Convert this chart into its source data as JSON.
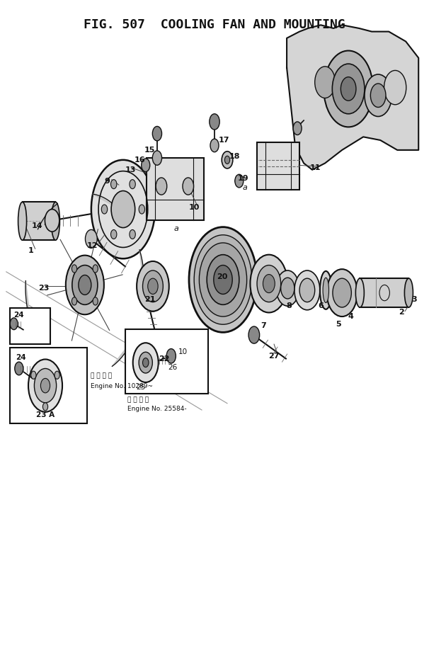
{
  "title": "FIG. 507  COOLING FAN AND MOUNTING",
  "bg_color": "#ffffff",
  "fig_width": 6.06,
  "fig_height": 9.35,
  "dpi": 100,
  "inset1_sublabel": "適 用 号 機",
  "inset1_label": "Engine No. 25584-",
  "inset2_sublabel": "適 用 号 機",
  "inset2_label": "Engine No. 10289~"
}
